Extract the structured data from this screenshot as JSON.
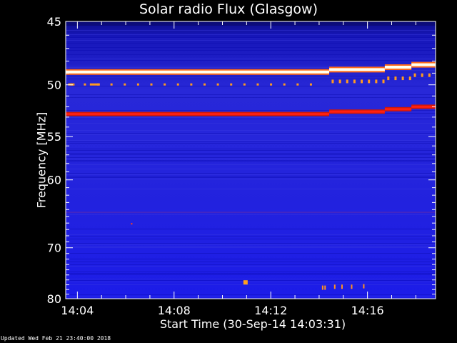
{
  "chart_data": {
    "type": "heatmap",
    "title": "Solar radio Flux (Glasgow)",
    "xlabel": "Start Time (30-Sep-14 14:03:31)",
    "ylabel": "Frequency [MHz]",
    "x_ticks": [
      "14:04",
      "14:08",
      "14:12",
      "14:16"
    ],
    "x_tick_minutes": [
      0.483,
      4.483,
      8.483,
      12.483
    ],
    "xlim_minutes": [
      0,
      15.3
    ],
    "y_ticks": [
      45,
      50,
      55,
      60,
      70,
      80
    ],
    "ylim": [
      45,
      80
    ],
    "y_scale": "reciprocal",
    "emission_lines": [
      {
        "freq_start": 48.9,
        "freq_end": 48.3,
        "intensity": "saturated",
        "color": "#fffff0"
      },
      {
        "freq_start": 50.0,
        "freq_end": 49.2,
        "intensity": "high",
        "color": "#ff9a20"
      },
      {
        "freq_start": 52.7,
        "freq_end": 52.0,
        "intensity": "high",
        "color": "#ff2010"
      }
    ],
    "colors": {
      "background": "#1e1ee0",
      "low": "#0a0a9a",
      "high": "#ff2010",
      "max": "#fffff0"
    }
  },
  "footer": {
    "text": "Updated Wed Feb 21 23:40:00 2018"
  }
}
